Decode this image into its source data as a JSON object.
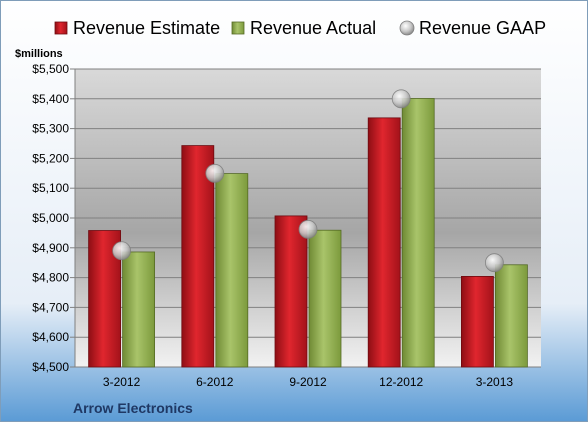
{
  "chart_data": {
    "type": "bar",
    "title": "",
    "company": "Arrow Electronics",
    "ylabel": "$millions",
    "ylim": [
      4500,
      5500
    ],
    "yticks": [
      "$4,500",
      "$4,600",
      "$4,700",
      "$4,800",
      "$4,900",
      "$5,000",
      "$5,100",
      "$5,200",
      "$5,300",
      "$5,400",
      "$5,500"
    ],
    "ytick_values": [
      4500,
      4600,
      4700,
      4800,
      4900,
      5000,
      5100,
      5200,
      5300,
      5400,
      5500
    ],
    "categories": [
      "3-2012",
      "6-2012",
      "9-2012",
      "12-2012",
      "3-2013"
    ],
    "series": [
      {
        "name": "Revenue Estimate",
        "kind": "bar",
        "color": "#c0161e",
        "values": [
          4958,
          5243,
          5007,
          5336,
          4804
        ]
      },
      {
        "name": "Revenue Actual",
        "kind": "bar",
        "color": "#8aa84a",
        "values": [
          4886,
          5149,
          4959,
          5401,
          4843
        ]
      },
      {
        "name": "Revenue GAAP",
        "kind": "marker",
        "color": "#bfbfbf",
        "values": [
          4890,
          5150,
          4962,
          5400,
          4850
        ]
      }
    ],
    "grid": true,
    "legend": "top"
  }
}
